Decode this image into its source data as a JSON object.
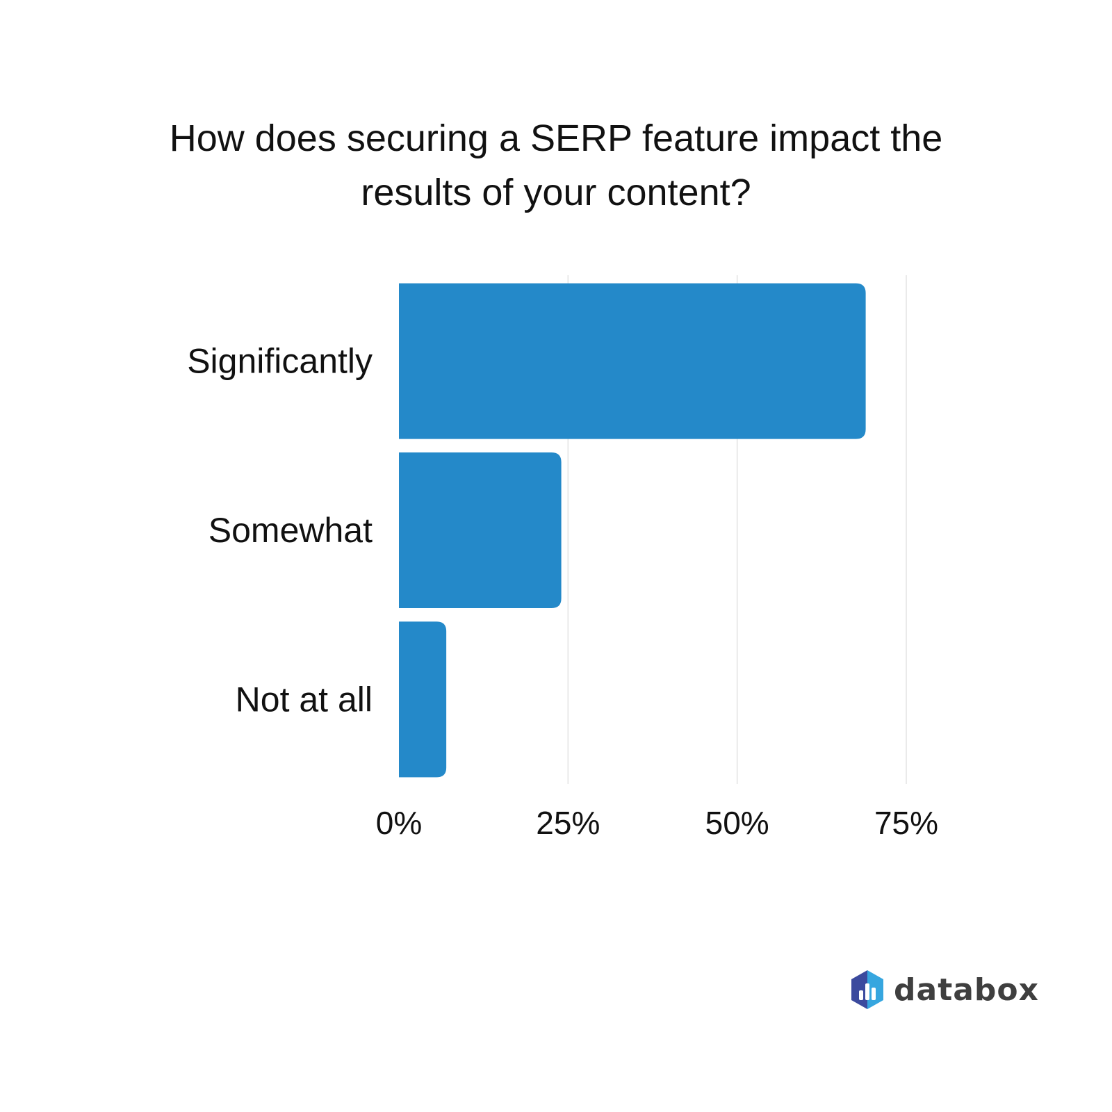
{
  "title_line1": "How does securing a SERP feature impact the",
  "title_line2": "results of your content?",
  "colors": {
    "bar": "#2489c9",
    "grid": "#e3e3e3",
    "text": "#111111",
    "logo_dark": "#3b4a9e",
    "logo_light": "#36a6df"
  },
  "logo": {
    "text": "databox",
    "icon": "databox-logo-icon"
  },
  "chart_data": {
    "type": "bar",
    "orientation": "horizontal",
    "categories": [
      "Significantly",
      "Somewhat",
      "Not at all"
    ],
    "values": [
      69,
      24,
      7
    ],
    "x_ticks": [
      "0%",
      "25%",
      "50%",
      "75%"
    ],
    "x_tick_values": [
      0,
      25,
      50,
      75
    ],
    "xlim": [
      0,
      75
    ],
    "unit": "%",
    "grid": true,
    "legend": "none"
  }
}
